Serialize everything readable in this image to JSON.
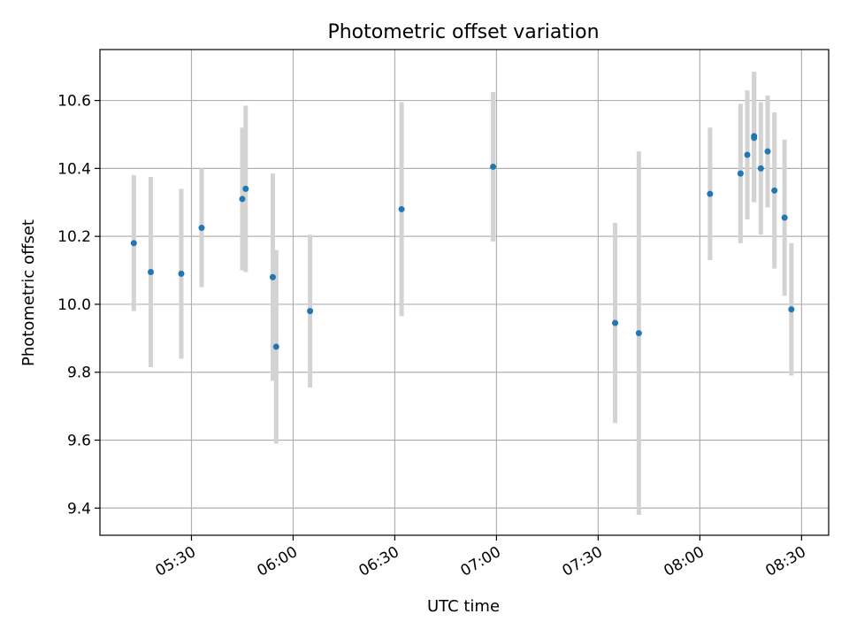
{
  "chart_data": {
    "type": "scatter",
    "title": "Photometric offset variation",
    "xlabel": "UTC time",
    "ylabel": "Photometric offset",
    "xlim": [
      "05:03",
      "08:38"
    ],
    "ylim": [
      9.32,
      10.75
    ],
    "grid": true,
    "x_ticks": [
      "05:30",
      "06:00",
      "06:30",
      "07:00",
      "07:30",
      "08:00",
      "08:30"
    ],
    "y_ticks": [
      9.4,
      9.6,
      9.8,
      10.0,
      10.2,
      10.4,
      10.6
    ],
    "colors": {
      "points": "#1f77b4",
      "errorbars": "#d3d3d3",
      "grid": "#b0b0b0"
    },
    "points": [
      {
        "x": "05:13",
        "y": 10.18,
        "err": 0.2
      },
      {
        "x": "05:18",
        "y": 10.095,
        "err": 0.28
      },
      {
        "x": "05:27",
        "y": 10.09,
        "err": 0.25
      },
      {
        "x": "05:33",
        "y": 10.225,
        "err": 0.175
      },
      {
        "x": "05:45",
        "y": 10.31,
        "err": 0.21
      },
      {
        "x": "05:46",
        "y": 10.34,
        "err": 0.245
      },
      {
        "x": "05:54",
        "y": 10.08,
        "err": 0.305
      },
      {
        "x": "05:55",
        "y": 9.875,
        "err": 0.285
      },
      {
        "x": "06:05",
        "y": 9.98,
        "err": 0.225
      },
      {
        "x": "06:32",
        "y": 10.28,
        "err": 0.315
      },
      {
        "x": "06:59",
        "y": 10.405,
        "err": 0.22
      },
      {
        "x": "07:35",
        "y": 9.945,
        "err": 0.295
      },
      {
        "x": "07:42",
        "y": 9.915,
        "err": 0.535
      },
      {
        "x": "08:03",
        "y": 10.325,
        "err": 0.195
      },
      {
        "x": "08:12",
        "y": 10.385,
        "err": 0.205
      },
      {
        "x": "08:14",
        "y": 10.44,
        "err": 0.19
      },
      {
        "x": "08:16",
        "y": 10.49,
        "err": 0.19
      },
      {
        "x": "08:16",
        "y": 10.495,
        "err": 0.19
      },
      {
        "x": "08:18",
        "y": 10.4,
        "err": 0.195
      },
      {
        "x": "08:20",
        "y": 10.45,
        "err": 0.165
      },
      {
        "x": "08:22",
        "y": 10.335,
        "err": 0.23
      },
      {
        "x": "08:25",
        "y": 10.255,
        "err": 0.23
      },
      {
        "x": "08:27",
        "y": 9.985,
        "err": 0.195
      }
    ]
  }
}
